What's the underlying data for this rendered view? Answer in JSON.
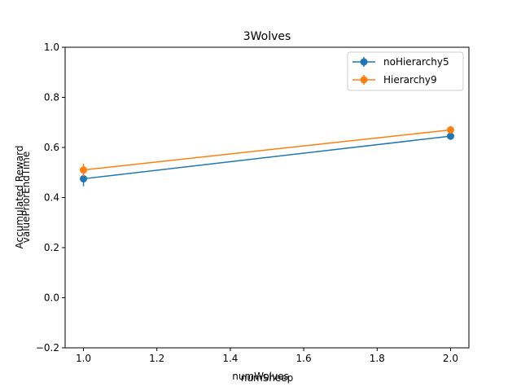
{
  "chart_data": {
    "type": "line",
    "title": "3Wolves",
    "xlabels": [
      "numWolves",
      "numSheep"
    ],
    "ylabels": [
      "Accumulated Reward",
      "valuePriorEndTime"
    ],
    "xlim": [
      0.95,
      2.05
    ],
    "ylim": [
      -0.2,
      1.0
    ],
    "xticks": [
      1.0,
      1.2,
      1.4,
      1.6,
      1.8,
      2.0
    ],
    "xtick_labels": [
      "1.0",
      "1.2",
      "1.4",
      "1.6",
      "1.8",
      "2.0"
    ],
    "yticks": [
      -0.2,
      0.0,
      0.2,
      0.4,
      0.6,
      0.8,
      1.0
    ],
    "ytick_labels": [
      "−0.2",
      "0.0",
      "0.2",
      "0.4",
      "0.6",
      "0.8",
      "1.0"
    ],
    "grid": false,
    "legend_position": "upper right",
    "series": [
      {
        "name": "noHierarchy5",
        "color": "#1f77b4",
        "x": [
          1.0,
          2.0
        ],
        "y": [
          0.475,
          0.645
        ],
        "yerr": [
          0.03,
          0.015
        ]
      },
      {
        "name": "Hierarchy9",
        "color": "#ff7f0e",
        "x": [
          1.0,
          2.0
        ],
        "y": [
          0.51,
          0.67
        ],
        "yerr": [
          0.025,
          0.015
        ]
      }
    ]
  }
}
